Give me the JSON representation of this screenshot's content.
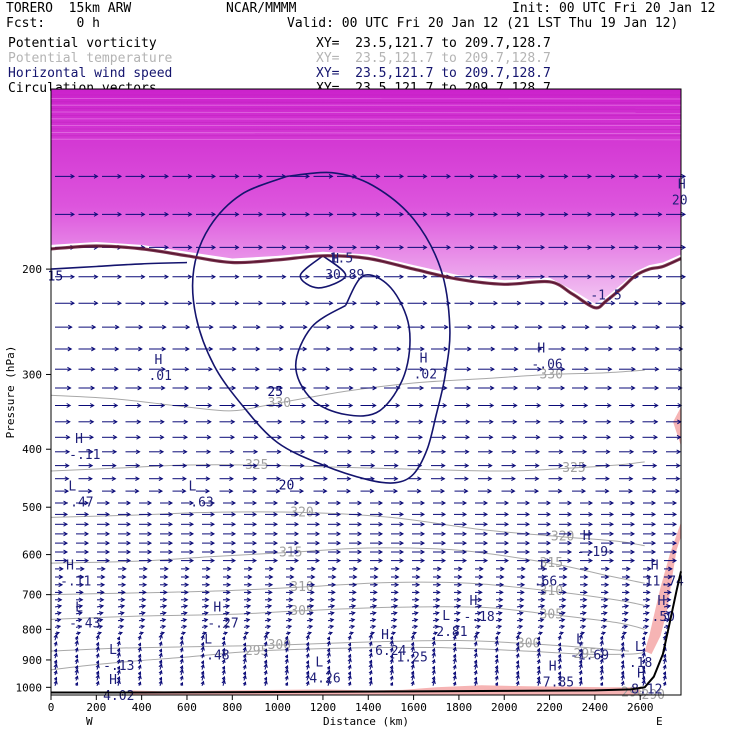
{
  "header": {
    "model": "TORERO  15km ARW",
    "center": "NCAR/MMMM",
    "init": "Init: 00 UTC Fri 20 Jan 12",
    "fcst": "Fcst:    0 h",
    "valid": "Valid: 00 UTC Fri 20 Jan 12 (21 LST Thu 19 Jan 12)"
  },
  "legend": [
    {
      "label": "Potential vorticity",
      "xy": "XY=  23.5,121.7 to 209.7,128.7",
      "color": "#000000"
    },
    {
      "label": "Potential temperature",
      "xy": "XY=  23.5,121.7 to 209.7,128.7",
      "color": "#b4b4b4"
    },
    {
      "label": "Horizontal wind speed",
      "xy": "XY=  23.5,121.7 to 209.7,128.7",
      "color": "#14146e"
    },
    {
      "label": "Circulation vectors",
      "xy": "XY=  23.5,121.7 to 209.7,128.7",
      "color": "#000000"
    }
  ],
  "axes": {
    "xlabel": "Distance (km)",
    "ylabel": "Pressure (hPa)",
    "west": "W",
    "east": "E"
  },
  "chart_data": {
    "type": "cross-section",
    "x_range": [
      0,
      2780
    ],
    "y_range": [
      1030,
      100
    ],
    "y_scale": "log",
    "x_ticks": [
      0,
      200,
      400,
      600,
      800,
      1000,
      1200,
      1400,
      1600,
      1800,
      2000,
      2200,
      2400,
      2600
    ],
    "y_ticks": [
      200,
      300,
      400,
      500,
      600,
      700,
      800,
      900,
      1000
    ],
    "theta_contours": [
      {
        "value": 290,
        "points": [
          [
            2560,
            1020
          ],
          [
            2650,
            1030
          ]
        ]
      },
      {
        "value": 295,
        "points": [
          [
            0,
            935
          ],
          [
            150,
            920
          ],
          [
            350,
            905
          ],
          [
            600,
            890
          ],
          [
            900,
            870
          ],
          [
            1300,
            860
          ],
          [
            1700,
            858
          ],
          [
            2100,
            870
          ],
          [
            2350,
            880
          ],
          [
            2550,
            880
          ],
          [
            2620,
            875
          ]
        ]
      },
      {
        "value": 300,
        "points": [
          [
            0,
            870
          ],
          [
            300,
            860
          ],
          [
            650,
            855
          ],
          [
            1000,
            850
          ],
          [
            1400,
            840
          ],
          [
            1800,
            835
          ],
          [
            2100,
            845
          ],
          [
            2400,
            860
          ],
          [
            2550,
            870
          ]
        ]
      },
      {
        "value": 305,
        "points": [
          [
            0,
            770
          ],
          [
            400,
            760
          ],
          [
            800,
            755
          ],
          [
            1100,
            745
          ],
          [
            1500,
            735
          ],
          [
            1900,
            735
          ],
          [
            2200,
            755
          ],
          [
            2500,
            780
          ],
          [
            2620,
            800
          ]
        ]
      },
      {
        "value": 310,
        "points": [
          [
            0,
            700
          ],
          [
            400,
            695
          ],
          [
            750,
            690
          ],
          [
            1100,
            680
          ],
          [
            1500,
            668
          ],
          [
            1850,
            670
          ],
          [
            2200,
            690
          ],
          [
            2500,
            715
          ],
          [
            2620,
            730
          ]
        ]
      },
      {
        "value": 315,
        "points": [
          [
            0,
            620
          ],
          [
            400,
            615
          ],
          [
            700,
            605
          ],
          [
            1050,
            595
          ],
          [
            1400,
            585
          ],
          [
            1800,
            590
          ],
          [
            2200,
            620
          ],
          [
            2450,
            650
          ],
          [
            2620,
            670
          ]
        ]
      },
      {
        "value": 320,
        "points": [
          [
            0,
            520
          ],
          [
            400,
            515
          ],
          [
            700,
            510
          ],
          [
            1100,
            510
          ],
          [
            1500,
            520
          ],
          [
            1900,
            545
          ],
          [
            2250,
            560
          ],
          [
            2500,
            570
          ],
          [
            2620,
            580
          ]
        ]
      },
      {
        "value": 325,
        "points": [
          [
            0,
            435
          ],
          [
            300,
            430
          ],
          [
            600,
            425
          ],
          [
            900,
            425
          ],
          [
            1200,
            428
          ],
          [
            1600,
            432
          ],
          [
            2000,
            435
          ],
          [
            2300,
            430
          ],
          [
            2500,
            425
          ],
          [
            2620,
            420
          ]
        ]
      },
      {
        "value": 330,
        "points": [
          [
            0,
            325
          ],
          [
            300,
            330
          ],
          [
            600,
            340
          ],
          [
            800,
            345
          ],
          [
            1000,
            335
          ],
          [
            1300,
            320
          ],
          [
            1600,
            310
          ],
          [
            1900,
            305
          ],
          [
            2200,
            300
          ],
          [
            2450,
            298
          ],
          [
            2620,
            295
          ]
        ]
      }
    ],
    "wind_speed_contours": [
      {
        "value": 15,
        "points": [
          [
            0,
            200
          ],
          [
            200,
            198
          ],
          [
            400,
            196
          ],
          [
            600,
            195
          ]
        ]
      },
      {
        "value": 20,
        "points": [
          [
            1040,
            140
          ],
          [
            840,
            150
          ],
          [
            700,
            170
          ],
          [
            630,
            200
          ],
          [
            640,
            240
          ],
          [
            720,
            290
          ],
          [
            850,
            340
          ],
          [
            1000,
            390
          ],
          [
            1200,
            425
          ],
          [
            1400,
            450
          ],
          [
            1520,
            455
          ],
          [
            1600,
            440
          ],
          [
            1660,
            400
          ],
          [
            1700,
            350
          ],
          [
            1740,
            300
          ],
          [
            1760,
            250
          ],
          [
            1720,
            200
          ],
          [
            1600,
            165
          ],
          [
            1420,
            145
          ],
          [
            1240,
            138
          ],
          [
            1040,
            140
          ]
        ]
      },
      {
        "value": 25,
        "points": [
          [
            1300,
            230
          ],
          [
            1150,
            250
          ],
          [
            1080,
            290
          ],
          [
            1150,
            330
          ],
          [
            1300,
            350
          ],
          [
            1450,
            345
          ],
          [
            1560,
            300
          ],
          [
            1580,
            250
          ],
          [
            1500,
            215
          ],
          [
            1380,
            205
          ],
          [
            1300,
            230
          ]
        ]
      },
      {
        "value": 15,
        "points": [
          [
            1200,
            190
          ],
          [
            1100,
            205
          ],
          [
            1180,
            215
          ],
          [
            1300,
            205
          ],
          [
            1200,
            190
          ]
        ]
      }
    ],
    "pv_line": {
      "value": 1.5,
      "points": [
        [
          0,
          185
        ],
        [
          200,
          183
        ],
        [
          400,
          185
        ],
        [
          600,
          190
        ],
        [
          800,
          195
        ],
        [
          1000,
          193
        ],
        [
          1200,
          190
        ],
        [
          1400,
          192
        ],
        [
          1600,
          200
        ],
        [
          1800,
          208
        ],
        [
          2000,
          212
        ],
        [
          2200,
          210
        ],
        [
          2300,
          220
        ],
        [
          2400,
          232
        ],
        [
          2450,
          226
        ],
        [
          2520,
          215
        ],
        [
          2580,
          205
        ],
        [
          2640,
          200
        ],
        [
          2700,
          198
        ],
        [
          2780,
          192
        ]
      ]
    },
    "extrema": [
      {
        "kind": "H",
        "label": ".01",
        "x": 430,
        "p": 295
      },
      {
        "kind": "H",
        "label": "30.89",
        "x": 1210,
        "p": 200
      },
      {
        "kind": "H",
        "label": ".02",
        "x": 1600,
        "p": 293
      },
      {
        "kind": "H",
        "label": "-.06",
        "x": 2120,
        "p": 282
      },
      {
        "kind": "H",
        "label": "20",
        "x": 2740,
        "p": 150
      },
      {
        "kind": "H",
        "label": "-.11",
        "x": 80,
        "p": 400
      },
      {
        "kind": "L",
        "label": "-.47",
        "x": 50,
        "p": 480
      },
      {
        "kind": "L",
        "label": "-.63",
        "x": 580,
        "p": 480
      },
      {
        "kind": "H",
        "label": "-.19",
        "x": 2320,
        "p": 580
      },
      {
        "kind": "H",
        "label": "-.11",
        "x": 40,
        "p": 650
      },
      {
        "kind": "L",
        "label": ".66",
        "x": 2130,
        "p": 650
      },
      {
        "kind": "H",
        "label": "11.74",
        "x": 2620,
        "p": 650
      },
      {
        "kind": "L",
        "label": "-.43",
        "x": 80,
        "p": 765
      },
      {
        "kind": "H",
        "label": "-.27",
        "x": 690,
        "p": 765
      },
      {
        "kind": "H",
        "label": "-.18",
        "x": 1820,
        "p": 745
      },
      {
        "kind": "H",
        "label": ".50",
        "x": 2650,
        "p": 745
      },
      {
        "kind": "L",
        "label": "2.81",
        "x": 1700,
        "p": 790
      },
      {
        "kind": "H",
        "label": "6.24",
        "x": 1430,
        "p": 850
      },
      {
        "kind": "L",
        "label": "-.48",
        "x": 650,
        "p": 865
      },
      {
        "kind": "L",
        "label": "-1.69",
        "x": 2290,
        "p": 865
      },
      {
        "kind": "L",
        "label": "-.13",
        "x": 230,
        "p": 900
      },
      {
        "kind": "L",
        "label": ".18",
        "x": 2550,
        "p": 890
      },
      {
        "kind": "L",
        "label": "4.26",
        "x": 1140,
        "p": 945
      },
      {
        "kind": "H",
        "label": "7.85",
        "x": 2170,
        "p": 960
      },
      {
        "kind": "H",
        "label": "8.12",
        "x": 2560,
        "p": 985
      },
      {
        "kind": "H",
        "label": "4.02",
        "x": 230,
        "p": 1010
      }
    ],
    "free_labels": [
      {
        "text": "-1.25",
        "x": 1490,
        "p": 905,
        "cls": "ann"
      },
      {
        "text": "-1.5",
        "x": 2380,
        "p": 225,
        "cls": "ann"
      },
      {
        "text": "1.5",
        "x": 1230,
        "p": 195,
        "cls": "ann"
      }
    ],
    "pink_shading": [
      {
        "region": "surface",
        "x": [
          350,
          2600
        ],
        "p": [
          1000,
          1030
        ]
      },
      {
        "region": "east-column",
        "x": [
          2560,
          2780
        ],
        "p": [
          530,
          880
        ]
      }
    ]
  }
}
